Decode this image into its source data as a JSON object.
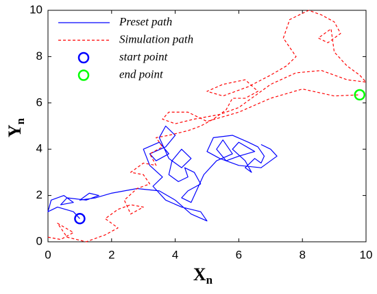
{
  "chart_data": {
    "type": "line",
    "x_label": {
      "text": "X",
      "subscript": "n"
    },
    "y_label": {
      "text": "Y",
      "subscript": "n"
    },
    "xlim": [
      0,
      10
    ],
    "ylim": [
      0,
      10
    ],
    "xticks": [
      0,
      2,
      4,
      6,
      8,
      10
    ],
    "yticks": [
      0,
      2,
      4,
      6,
      8,
      10
    ],
    "legend": "top-left",
    "series": [
      {
        "name": "Preset path",
        "color": "#0000ff",
        "style": "solid",
        "x": [
          1,
          0.8,
          0.3,
          0,
          0.1,
          0.5,
          0.8,
          0.4,
          0.6,
          1.2,
          1.6,
          1.3,
          1.0,
          1.5,
          2.0,
          2.8,
          3.5,
          4.0,
          4.5,
          5.0,
          4.8,
          4.2,
          3.7,
          3.3,
          3.6,
          3.2,
          3.0,
          3.5,
          3.8,
          3.4,
          3.2,
          3.7,
          4.0,
          3.7,
          3.5,
          3.8,
          4.2,
          4.5,
          4.2,
          3.9,
          3.8,
          4.1,
          4.4,
          4.3,
          4.6,
          4.8,
          4.4,
          4.2,
          4.5,
          4.6,
          4.9,
          5.3,
          5.8,
          5.5,
          5.3,
          5.6,
          6.0,
          6.5,
          6.0,
          5.8,
          6.2,
          6.4,
          6.2,
          6.5,
          6.7,
          6.8,
          6.6,
          6.3,
          5.8,
          5.2,
          5.0,
          5.4,
          6.0,
          6.7,
          7.0,
          7.2,
          7.0,
          6.7
        ],
        "y": [
          1,
          1.3,
          1.5,
          1.3,
          1.8,
          2.0,
          1.7,
          1.6,
          1.9,
          1.8,
          2.0,
          2.1,
          1.8,
          1.9,
          2.1,
          2.3,
          2.2,
          1.8,
          1.2,
          0.9,
          1.3,
          1.5,
          1.8,
          2.4,
          2.8,
          3.3,
          4.0,
          4.3,
          3.8,
          3.5,
          3.8,
          4.1,
          4.6,
          5.0,
          4.5,
          3.6,
          3.2,
          3.6,
          4.0,
          3.5,
          2.9,
          2.6,
          2.8,
          3.2,
          3.0,
          2.5,
          2.2,
          1.9,
          1.7,
          2.0,
          2.9,
          3.5,
          3.8,
          4.4,
          4.0,
          3.5,
          3.7,
          3.9,
          4.3,
          4.0,
          3.5,
          3.0,
          3.2,
          3.6,
          3.4,
          3.7,
          4.1,
          4.3,
          4.6,
          4.5,
          3.9,
          3.6,
          3.3,
          3.2,
          3.5,
          3.7,
          4.0,
          4.2
        ]
      },
      {
        "name": "Simulation path",
        "color": "#ff0000",
        "style": "dashed",
        "x": [
          0,
          0.4,
          0.8,
          0.3,
          0.6,
          1.2,
          1.8,
          2.2,
          1.8,
          2.2,
          2.6,
          3.0,
          2.6,
          2.4,
          2.8,
          3.2,
          3.0,
          2.6,
          3.0,
          3.4,
          3.2,
          3.6,
          3.4,
          3.8,
          4.4,
          4.8,
          5.2,
          5.6,
          5.8,
          6.2,
          6.6,
          6.2,
          5.5,
          5.0,
          5.5,
          6.3,
          7.0,
          7.5,
          7.8,
          7.4,
          7.6,
          8.2,
          8.6,
          9.0,
          9.2,
          8.8,
          8.5,
          8.9,
          9.0,
          9.4,
          9.8,
          10,
          9.4,
          8.6,
          7.8,
          7.0,
          6.5,
          6.0,
          5.4,
          4.6,
          4.0,
          3.6,
          3.8,
          4.4,
          5.0,
          6.0,
          7.0,
          8.0,
          9.0,
          9.8
        ],
        "y": [
          0.2,
          0.1,
          0.4,
          0.8,
          0.2,
          0,
          0.3,
          0.6,
          1.0,
          1.4,
          1.6,
          1.5,
          1.2,
          1.8,
          2.3,
          2.5,
          2.9,
          3.0,
          3.4,
          3.3,
          3.8,
          4.1,
          4.5,
          4.6,
          4.8,
          5.0,
          5.3,
          5.7,
          6.2,
          6.2,
          6.5,
          7.0,
          6.8,
          6.5,
          6.3,
          6.7,
          7.2,
          7.6,
          8.0,
          8.8,
          9.6,
          10,
          9.8,
          9.5,
          9.0,
          8.6,
          8.8,
          9.2,
          8.2,
          7.6,
          7.2,
          6.9,
          7.0,
          7.4,
          7.3,
          6.8,
          6.3,
          5.8,
          5.5,
          5.3,
          5.1,
          5.3,
          5.6,
          5.6,
          5.2,
          5.6,
          6.2,
          6.6,
          6.3,
          6.35
        ]
      },
      {
        "name": "start point",
        "color": "#0000ff",
        "style": "marker",
        "x": [
          1
        ],
        "y": [
          1
        ]
      },
      {
        "name": "end point",
        "color": "#00ff00",
        "style": "marker",
        "x": [
          9.8
        ],
        "y": [
          6.35
        ]
      }
    ]
  }
}
